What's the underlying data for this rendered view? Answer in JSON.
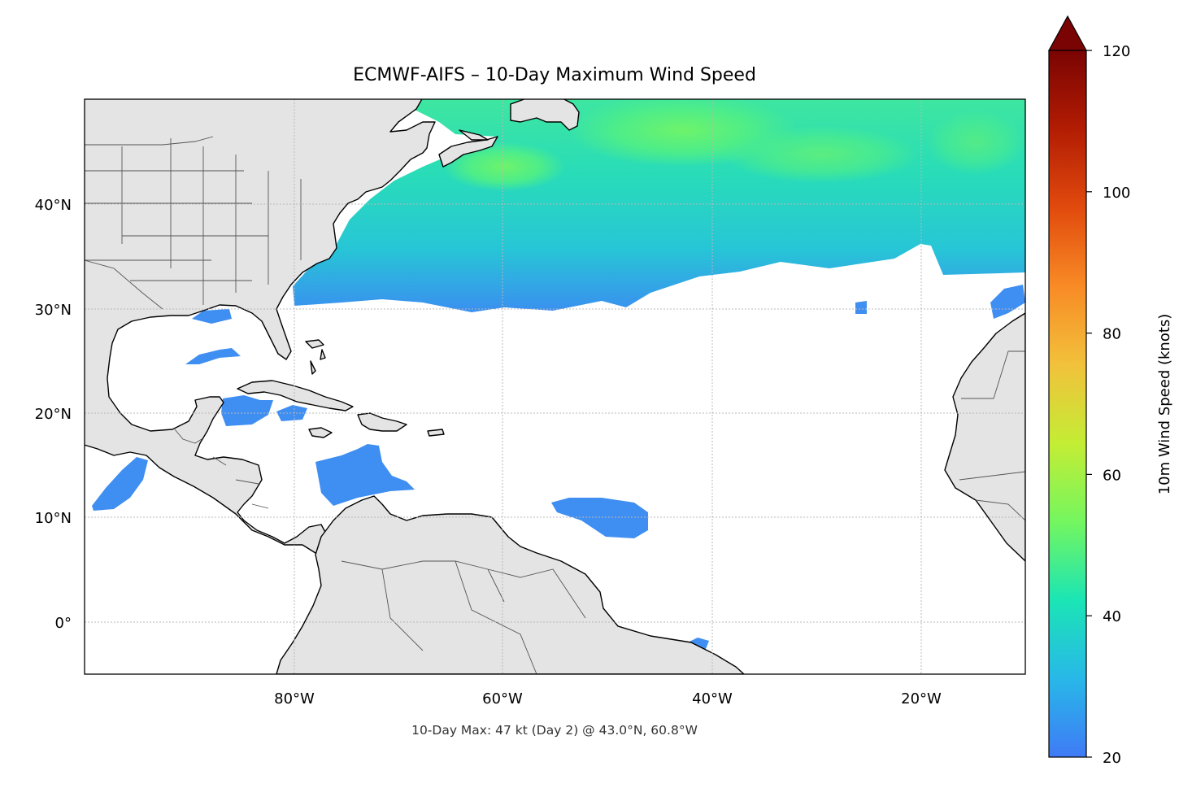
{
  "title": "ECMWF-AIFS – 10-Day Maximum Wind Speed",
  "footnote": "10-Day Max: 47 kt (Day 2) @ 43.0°N, 60.8°W",
  "colorbar": {
    "label": "10m Wind Speed (knots)",
    "ticks": [
      "120",
      "100",
      "80",
      "60",
      "40",
      "20"
    ],
    "min": 20,
    "max": 120,
    "extend": "max",
    "colormap": [
      "#3f7af6",
      "#28b8e8",
      "#1be5b5",
      "#74f65f",
      "#c4ed34",
      "#f2c13b",
      "#f88a25",
      "#e14a0d",
      "#b21c03",
      "#7a0403"
    ]
  },
  "map": {
    "lon_range": [
      -100,
      -10
    ],
    "lat_range": [
      -5,
      50
    ],
    "lat_labels": [
      "40°N",
      "30°N",
      "20°N",
      "10°N",
      "0°"
    ],
    "lon_labels": [
      "80°W",
      "60°W",
      "40°W",
      "20°W"
    ],
    "gridlines": true,
    "land_color": "#e4e4e4",
    "ocean_color": "#ffffff"
  },
  "max_point": {
    "speed_kt": 47,
    "day": 2,
    "lat": 43.0,
    "lon": -60.8
  }
}
